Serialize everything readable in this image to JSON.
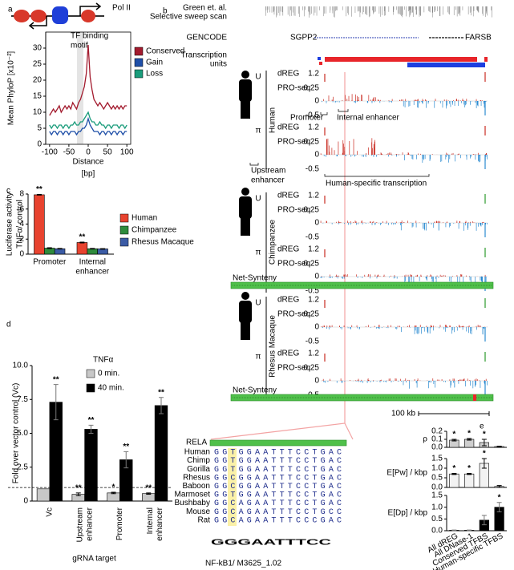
{
  "chart_data": [
    {
      "type": "line",
      "label": "a",
      "annotations": {
        "pol": "Pol II",
        "motif": [
          "TF binding",
          "motif"
        ]
      },
      "ylabel": "Mean PhyloP [x10⁻²]",
      "xlabel": "Distance",
      "xunit": "[bp]",
      "x": [
        -100,
        -95,
        -90,
        -85,
        -80,
        -75,
        -70,
        -65,
        -60,
        -55,
        -50,
        -45,
        -40,
        -35,
        -30,
        -25,
        -20,
        -15,
        -10,
        -5,
        0,
        5,
        10,
        15,
        20,
        25,
        30,
        35,
        40,
        45,
        50,
        55,
        60,
        65,
        70,
        75,
        80,
        85,
        90,
        95,
        100
      ],
      "series": [
        {
          "name": "Conserved",
          "color": "#a31b2e",
          "values": [
            9,
            10,
            11,
            10,
            11,
            12,
            10,
            11,
            12,
            11,
            12,
            11,
            13,
            12,
            11,
            13,
            14,
            16,
            18,
            22,
            31,
            21,
            17,
            14,
            13,
            12,
            13,
            12,
            11,
            12,
            13,
            12,
            11,
            12,
            11,
            12,
            11,
            12,
            11,
            12,
            12
          ]
        },
        {
          "name": "Gain",
          "color": "#1f4fa8",
          "values": [
            4,
            3,
            4,
            4,
            3,
            4,
            4,
            3,
            4,
            4,
            3,
            4,
            4,
            4,
            3,
            4,
            4,
            5,
            5,
            6,
            8,
            6,
            5,
            4,
            4,
            4,
            3,
            4,
            4,
            3,
            4,
            4,
            3,
            4,
            4,
            3,
            4,
            4,
            3,
            4,
            4
          ]
        },
        {
          "name": "Loss",
          "color": "#1a9c7b",
          "values": [
            6,
            5,
            6,
            6,
            5,
            6,
            6,
            5,
            6,
            6,
            5,
            6,
            6,
            7,
            6,
            6,
            7,
            7,
            8,
            9,
            10,
            8,
            7,
            7,
            6,
            6,
            7,
            6,
            6,
            5,
            6,
            6,
            5,
            6,
            6,
            6,
            5,
            6,
            6,
            5,
            6
          ]
        }
      ],
      "xlim": [
        -110,
        110
      ],
      "xticks": [
        -100,
        -50,
        0,
        50,
        100
      ],
      "ylim": [
        0,
        35
      ],
      "yticks": [
        0,
        5,
        10,
        15,
        20,
        25,
        30
      ]
    },
    {
      "type": "bar",
      "label": "c",
      "ylabel": [
        "Luciferase activity",
        "TNFα/ control"
      ],
      "categories": [
        "Promoter",
        [
          "Internal",
          "enhancer"
        ]
      ],
      "series": [
        {
          "name": "Human",
          "color": "#e8432f",
          "values": [
            7.9,
            1.55
          ],
          "errors": [
            0.05,
            0.05
          ],
          "significance": [
            "**",
            "**"
          ]
        },
        {
          "name": "Chimpanzee",
          "color": "#2e8b3c",
          "values": [
            0.8,
            0.72
          ],
          "errors": [
            0.05,
            0.04
          ]
        },
        {
          "name": "Rhesus Macaque",
          "color": "#3b5ba5",
          "values": [
            0.72,
            0.7
          ],
          "errors": [
            0.04,
            0.04
          ]
        }
      ],
      "ylim": [
        0,
        8
      ],
      "yticks": [
        0,
        2,
        4,
        6,
        8
      ]
    },
    {
      "type": "bar",
      "label": "d",
      "ylabel": "Fold over vector control (Vc)",
      "xlabel": "gRNA target",
      "legend_title": "TNFα",
      "categories": [
        "Vc",
        [
          "Upstream",
          "enhancer"
        ],
        "Promoter",
        [
          "Internal",
          "enhancer"
        ]
      ],
      "series": [
        {
          "name": "0 min.",
          "color": "#c8c8c8",
          "values": [
            0.9,
            0.5,
            0.6,
            0.55
          ],
          "errors": [
            0,
            0.1,
            0.05,
            0.05
          ],
          "significance": [
            null,
            "**",
            "*",
            "**"
          ]
        },
        {
          "name": "40 min.",
          "color": "#000000",
          "values": [
            7.3,
            5.3,
            3.05,
            7.05
          ],
          "errors": [
            1.3,
            0.3,
            0.6,
            0.6
          ],
          "significance": [
            "**",
            "**",
            "**",
            "**"
          ]
        }
      ],
      "reference_line": 1,
      "ylim": [
        0,
        10
      ],
      "yticks": [
        0,
        2.5,
        {
          "value": 5,
          "label": "5.0"
        },
        7.5,
        {
          "value": 10,
          "label": "10.0"
        }
      ]
    },
    {
      "type": "bar",
      "label": "e",
      "categories": [
        "All dREG",
        "All DNase-1",
        "Conserved TFBS",
        "Human-specific TFBS"
      ],
      "series": [
        {
          "name": "ρ",
          "color": "#cfcfcf",
          "values": [
            0.09,
            0.1,
            0.06,
            0.01
          ],
          "errors": [
            0.01,
            0.01,
            0.04,
            0.005
          ],
          "significance": [
            "*",
            "*",
            "*",
            null
          ],
          "ylim": [
            0,
            0.2
          ],
          "yticks": [
            {
              "value": 0,
              "label": "0.0"
            },
            0.1,
            0.2
          ]
        },
        {
          "name": "E[Pw] / kbp",
          "color": "#f2f2f2",
          "values": [
            0.7,
            0.7,
            1.25,
            0.05
          ],
          "errors": [
            0.03,
            0.03,
            0.25,
            0.05
          ],
          "significance": [
            "*",
            "*",
            "*",
            null
          ],
          "ylim": [
            0,
            1.5
          ],
          "yticks": [
            {
              "value": 0,
              "label": "0.0"
            },
            0.5,
            {
              "value": 1,
              "label": "1.0"
            },
            1.5
          ]
        },
        {
          "name": "E[Dp] / kbp",
          "color": "#000000",
          "values": [
            0.02,
            0.02,
            0.45,
            1.0
          ],
          "errors": [
            0.01,
            0.01,
            0.2,
            0.2
          ],
          "significance": [
            null,
            null,
            null,
            "*"
          ],
          "ylim": [
            0,
            1.5
          ],
          "yticks": [
            {
              "value": 0,
              "label": "0.0"
            },
            0.5,
            {
              "value": 1,
              "label": "1.0"
            },
            1.5
          ]
        }
      ]
    }
  ],
  "browser": {
    "label": "b",
    "sweep": [
      "Green et. al.",
      "Selective sweep scan"
    ],
    "gencode": "GENCODE",
    "genes": [
      "SGPP2",
      "FARSB"
    ],
    "units": [
      "Transcription",
      "units"
    ],
    "species": [
      "Human",
      "Chimpanzee",
      "Rhesus Macaque"
    ],
    "strands": [
      "U",
      "π"
    ],
    "assays": [
      "dREG",
      "PRO-seq"
    ],
    "track_ticks": [
      1.2,
      0.25,
      0,
      -0.5
    ],
    "regions": {
      "promoter": "Promoter",
      "internal": "Internal enhancer",
      "upstream": [
        "Upstream",
        "enhancer"
      ],
      "human_specific": "Human-specific transcription"
    },
    "synteny": "Net-Synteny",
    "scale": "100 kb"
  },
  "motif": {
    "factor": "RELA",
    "species": [
      "Human",
      "Chimp",
      "Gorilla",
      "Rhesus",
      "Baboon",
      "Marmoset",
      "Bushbaby",
      "Mouse",
      "Rat"
    ],
    "sequences": [
      "GGTGGAATTTCCTGAC",
      "GGTGGAATTTCCTGAC",
      "GGTGGAATTTCCTGAC",
      "GGCGGAATTTCCTGAC",
      "GGCGGAATTTCCTGAC",
      "GGTGGAATTTCCTGAC",
      "GGCAGAATTTCCTGAC",
      "GGCAGAATTTCCTGCC",
      "GGCAGAATTTCCCGAC"
    ],
    "logo": "GGGAATTTCC",
    "source": "NF-kB1/ M3625_1.02"
  }
}
